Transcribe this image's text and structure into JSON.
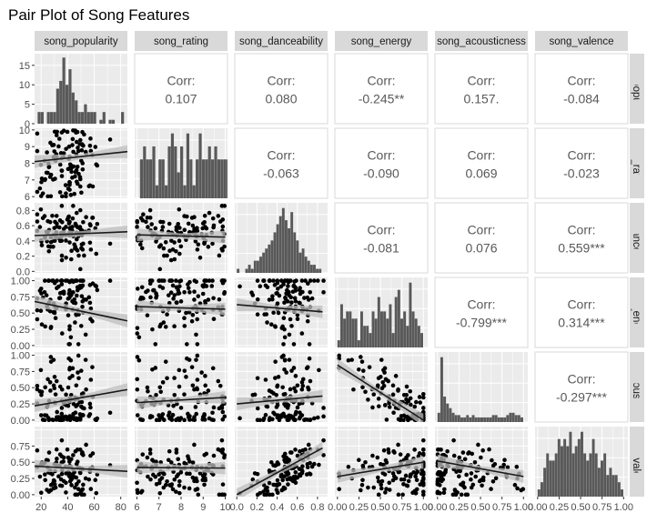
{
  "chart_data": {
    "type": "pair-plot",
    "title": "Pair Plot of Song Features",
    "variables": [
      {
        "key": "pop",
        "name": "song_popularity",
        "range": [
          15,
          85
        ],
        "ticks": [
          20,
          40,
          60,
          80
        ],
        "tick_labels": [
          "20",
          "40",
          "60",
          "80"
        ],
        "y_range": [
          0,
          18
        ],
        "y_ticks": [
          0,
          5,
          10,
          15
        ],
        "y_tick_labels": [
          "0",
          "5",
          "10",
          "15"
        ]
      },
      {
        "key": "rat",
        "name": "song_rating",
        "range": [
          5.9,
          10.1
        ],
        "ticks": [
          6,
          7,
          8,
          9,
          10
        ],
        "tick_labels": [
          "6",
          "7",
          "8",
          "9",
          "10"
        ],
        "y_ticks": [
          6,
          7,
          8,
          9,
          10
        ],
        "y_tick_labels": [
          "6",
          "7",
          "8",
          "9",
          "10"
        ]
      },
      {
        "key": "dan",
        "name": "song_danceability",
        "range": [
          -0.02,
          0.9
        ],
        "ticks": [
          0.0,
          0.2,
          0.4,
          0.6,
          0.8
        ],
        "tick_labels": [
          "0.0",
          "0.2",
          "0.4",
          "0.6",
          "0.8"
        ],
        "y_ticks": [
          0.0,
          0.2,
          0.4,
          0.6,
          0.8
        ],
        "y_tick_labels": [
          "0.0",
          "0.2",
          "0.4",
          "0.6",
          "0.8"
        ]
      },
      {
        "key": "ene",
        "name": "song_energy",
        "range": [
          -0.03,
          1.05
        ],
        "ticks": [
          0.0,
          0.25,
          0.5,
          0.75,
          1.0
        ],
        "tick_labels": [
          "0.00",
          "0.25",
          "0.50",
          "0.75",
          "1.00"
        ],
        "y_ticks": [
          0.0,
          0.25,
          0.5,
          0.75,
          1.0
        ],
        "y_tick_labels": [
          "0.00",
          "0.25",
          "0.50",
          "0.75",
          "1.00"
        ]
      },
      {
        "key": "aco",
        "name": "song_acousticness",
        "range": [
          -0.03,
          1.05
        ],
        "ticks": [
          0.0,
          0.25,
          0.5,
          0.75,
          1.0
        ],
        "tick_labels": [
          "0.00",
          "0.25",
          "0.50",
          "0.75",
          "1.00"
        ],
        "y_ticks": [
          0.0,
          0.25,
          0.5,
          0.75,
          1.0
        ],
        "y_tick_labels": [
          "0.00",
          "0.25",
          "0.50",
          "0.75",
          "1.00"
        ]
      },
      {
        "key": "val",
        "name": "song_valence",
        "range": [
          -0.03,
          1.05
        ],
        "ticks": [
          0.0,
          0.25,
          0.5,
          0.75,
          1.0
        ],
        "tick_labels": [
          "0.00",
          "0.25",
          "0.50",
          "0.75",
          "1.00"
        ],
        "y_ticks": [
          0.0,
          0.25,
          0.5,
          0.75
        ],
        "y_tick_labels": [
          "0.00",
          "0.25",
          "0.50",
          "0.75"
        ]
      }
    ],
    "col_strip_labels": [
      "song_popularity",
      "song_rating",
      "song_danceability",
      "song_energy",
      "song_acousticness",
      "song_valence"
    ],
    "row_strip_labels": [
      "song_popularity",
      "song_rating",
      "song_danceability",
      "song_energy",
      "song_acousticness",
      "song_valence"
    ],
    "correlations": [
      {
        "row": 0,
        "col": 1,
        "label": "Corr:",
        "value": "0.107"
      },
      {
        "row": 0,
        "col": 2,
        "label": "Corr:",
        "value": "0.080"
      },
      {
        "row": 0,
        "col": 3,
        "label": "Corr:",
        "value": "-0.245**"
      },
      {
        "row": 0,
        "col": 4,
        "label": "Corr:",
        "value": "0.157."
      },
      {
        "row": 0,
        "col": 5,
        "label": "Corr:",
        "value": "-0.084"
      },
      {
        "row": 1,
        "col": 2,
        "label": "Corr:",
        "value": "-0.063"
      },
      {
        "row": 1,
        "col": 3,
        "label": "Corr:",
        "value": "-0.090"
      },
      {
        "row": 1,
        "col": 4,
        "label": "Corr:",
        "value": "0.069"
      },
      {
        "row": 1,
        "col": 5,
        "label": "Corr:",
        "value": "-0.023"
      },
      {
        "row": 2,
        "col": 3,
        "label": "Corr:",
        "value": "-0.081"
      },
      {
        "row": 2,
        "col": 4,
        "label": "Corr:",
        "value": "0.076"
      },
      {
        "row": 2,
        "col": 5,
        "label": "Corr:",
        "value": "0.559***"
      },
      {
        "row": 3,
        "col": 4,
        "label": "Corr:",
        "value": "-0.799***"
      },
      {
        "row": 3,
        "col": 5,
        "label": "Corr:",
        "value": "0.314***"
      },
      {
        "row": 4,
        "col": 5,
        "label": "Corr:",
        "value": "-0.297***"
      }
    ],
    "histograms": {
      "pop": {
        "bin_start": 15,
        "bin_width": 2.33,
        "counts": [
          0,
          3,
          3,
          0,
          3,
          3,
          3,
          9,
          11,
          17,
          10,
          14,
          8,
          6,
          3,
          3,
          5,
          3,
          3,
          3,
          0,
          1,
          3,
          0,
          1,
          1,
          0,
          0,
          3,
          0,
          0
        ]
      },
      "rat": {
        "bin_start": 6,
        "bin_width": 0.14,
        "counts": [
          0,
          3,
          4,
          3,
          3,
          4,
          1,
          3,
          3,
          1,
          4,
          5,
          4,
          2,
          4,
          1,
          5,
          3,
          1,
          3,
          5,
          3,
          3,
          4,
          3,
          4,
          3,
          3,
          3,
          3
        ]
      },
      "dan": {
        "bin_start": 0,
        "bin_width": 0.028,
        "counts": [
          1,
          0,
          0,
          1,
          2,
          1,
          3,
          3,
          4,
          5,
          6,
          7,
          8,
          10,
          12,
          14,
          16,
          13,
          11,
          15,
          10,
          8,
          5,
          6,
          4,
          3,
          2,
          2,
          1,
          1
        ]
      },
      "ene": {
        "bin_start": 0,
        "bin_width": 0.0333,
        "counts": [
          1,
          6,
          4,
          5,
          5,
          4,
          4,
          1,
          5,
          3,
          3,
          2,
          5,
          4,
          7,
          5,
          5,
          4,
          6,
          2,
          7,
          8,
          4,
          5,
          3,
          9,
          5,
          4,
          3,
          2
        ]
      },
      "aco": {
        "bin_start": 0,
        "bin_width": 0.0333,
        "counts": [
          4,
          28,
          11,
          8,
          6,
          4,
          3,
          3,
          2,
          2,
          3,
          2,
          3,
          2,
          2,
          2,
          2,
          2,
          2,
          3,
          3,
          2,
          2,
          2,
          3,
          4,
          4,
          3,
          3,
          2
        ]
      },
      "val": {
        "bin_start": 0,
        "bin_width": 0.0333,
        "counts": [
          1,
          2,
          4,
          6,
          5,
          5,
          6,
          8,
          7,
          8,
          7,
          9,
          6,
          7,
          8,
          9,
          6,
          5,
          6,
          8,
          6,
          4,
          5,
          6,
          3,
          4,
          3,
          3,
          2,
          1
        ]
      }
    },
    "point_seed": 424242,
    "n_points": 120,
    "trend_lines": [
      {
        "row": 1,
        "col": 0,
        "start": [
          15,
          8.1
        ],
        "end": [
          85,
          8.7
        ]
      },
      {
        "row": 2,
        "col": 0,
        "start": [
          15,
          0.47
        ],
        "end": [
          85,
          0.52
        ]
      },
      {
        "row": 2,
        "col": 1,
        "start": [
          6,
          0.48
        ],
        "end": [
          10,
          0.45
        ]
      },
      {
        "row": 3,
        "col": 0,
        "start": [
          15,
          0.68
        ],
        "end": [
          85,
          0.38
        ]
      },
      {
        "row": 3,
        "col": 1,
        "start": [
          6,
          0.6
        ],
        "end": [
          10,
          0.56
        ]
      },
      {
        "row": 3,
        "col": 2,
        "start": [
          0,
          0.63
        ],
        "end": [
          0.85,
          0.52
        ]
      },
      {
        "row": 4,
        "col": 0,
        "start": [
          15,
          0.22
        ],
        "end": [
          85,
          0.47
        ]
      },
      {
        "row": 4,
        "col": 1,
        "start": [
          6,
          0.27
        ],
        "end": [
          10,
          0.35
        ]
      },
      {
        "row": 4,
        "col": 2,
        "start": [
          0,
          0.25
        ],
        "end": [
          0.85,
          0.37
        ]
      },
      {
        "row": 4,
        "col": 3,
        "start": [
          0.0,
          0.85
        ],
        "end": [
          1.0,
          0.0
        ]
      },
      {
        "row": 5,
        "col": 0,
        "start": [
          15,
          0.44
        ],
        "end": [
          85,
          0.36
        ]
      },
      {
        "row": 5,
        "col": 1,
        "start": [
          6,
          0.42
        ],
        "end": [
          10,
          0.41
        ]
      },
      {
        "row": 5,
        "col": 2,
        "start": [
          0,
          0.0
        ],
        "end": [
          0.85,
          0.72
        ]
      },
      {
        "row": 5,
        "col": 3,
        "start": [
          0.0,
          0.28
        ],
        "end": [
          1.0,
          0.5
        ]
      },
      {
        "row": 5,
        "col": 4,
        "start": [
          0.0,
          0.52
        ],
        "end": [
          1.0,
          0.28
        ]
      }
    ],
    "colors": {
      "panel_background": "#ebebeb",
      "grid": "#ffffff",
      "strip_background": "#d9d9d9",
      "bar": "#595959",
      "point": "#000000",
      "trend_line": "#1a1a1a",
      "ribbon": "#bdbdbd",
      "corr_text": "#595959",
      "corr_panel_border": "#d9d9d9"
    }
  }
}
